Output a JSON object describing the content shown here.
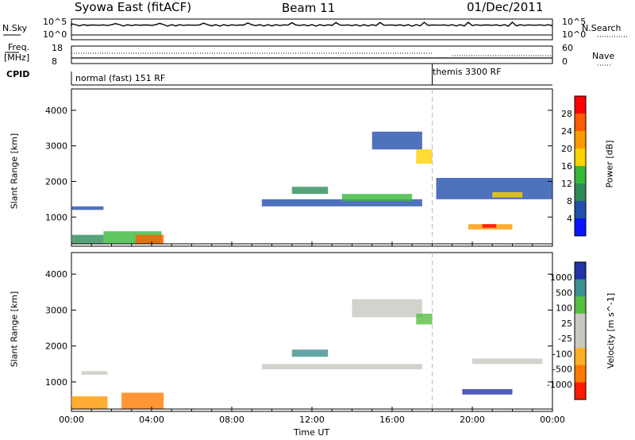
{
  "header": {
    "left": "Syowa East (fitACF)",
    "center": "Beam 11",
    "right": "01/Dec/2011"
  },
  "nsky_panel": {
    "left_label": "N.Sky",
    "right_label": "N.Search",
    "left_ticks": [
      "10^5",
      "10^0"
    ],
    "right_ticks": [
      "10^5",
      "10^0"
    ]
  },
  "freq_panel": {
    "left_label_line1": "Freq.",
    "left_label_line2": "[MHz]",
    "right_label": "Nave",
    "left_ticks": [
      "18",
      "8"
    ],
    "right_ticks": [
      "60",
      "0"
    ]
  },
  "cpid_panel": {
    "label": "CPID",
    "segments": [
      {
        "text": "normal (fast) 151 RF",
        "start_hour": 0
      },
      {
        "text": "themis 3300 RF",
        "start_hour": 18
      }
    ]
  },
  "chart_data": [
    {
      "type": "heatmap",
      "ylabel": "Slant Range [km]",
      "xlabel": "Time UT",
      "x_ticks": [
        "00:00",
        "04:00",
        "08:00",
        "12:00",
        "16:00",
        "20:00",
        "00:00"
      ],
      "y_ticks": [
        "1000",
        "2000",
        "3000",
        "4000"
      ],
      "ylim": [
        180,
        4600
      ],
      "xlim_hours": [
        0,
        24
      ],
      "colorbar_label": "Power [dB]",
      "colorbar_ticks": [
        "28",
        "24",
        "20",
        "16",
        "12",
        "8",
        "4"
      ],
      "colorbar_colors": [
        "#ff0000",
        "#ff5a00",
        "#ff9a00",
        "#ffd200",
        "#38b838",
        "#2e8b57",
        "#224faa",
        "#0a14ff"
      ],
      "regions": [
        {
          "t0": 0.0,
          "t1": 1.6,
          "r0": 250,
          "r1": 500,
          "c": "#2e8b57"
        },
        {
          "t0": 0.0,
          "t1": 1.6,
          "r0": 1200,
          "r1": 1300,
          "c": "#224faa"
        },
        {
          "t0": 1.6,
          "t1": 4.5,
          "r0": 250,
          "r1": 600,
          "c": "#38b838"
        },
        {
          "t0": 3.2,
          "t1": 4.6,
          "r0": 250,
          "r1": 500,
          "c": "#ff5a00"
        },
        {
          "t0": 9.5,
          "t1": 17.5,
          "r0": 1300,
          "r1": 1500,
          "c": "#224faa"
        },
        {
          "t0": 11.0,
          "t1": 12.8,
          "r0": 1650,
          "r1": 1850,
          "c": "#2e8b57"
        },
        {
          "t0": 13.5,
          "t1": 17.0,
          "r0": 1450,
          "r1": 1650,
          "c": "#38b838"
        },
        {
          "t0": 15.0,
          "t1": 17.5,
          "r0": 2900,
          "r1": 3400,
          "c": "#224faa"
        },
        {
          "t0": 17.2,
          "t1": 18.0,
          "r0": 2500,
          "r1": 2900,
          "c": "#ffd200"
        },
        {
          "t0": 18.2,
          "t1": 24.0,
          "r0": 1500,
          "r1": 2100,
          "c": "#224faa"
        },
        {
          "t0": 19.8,
          "t1": 22.0,
          "r0": 650,
          "r1": 800,
          "c": "#ff9a00"
        },
        {
          "t0": 20.5,
          "t1": 21.2,
          "r0": 700,
          "r1": 800,
          "c": "#ff0000"
        },
        {
          "t0": 21.0,
          "t1": 22.5,
          "r0": 1550,
          "r1": 1700,
          "c": "#ffd200"
        }
      ]
    },
    {
      "type": "heatmap",
      "ylabel": "Slant Range [km]",
      "xlabel": "Time UT",
      "x_ticks": [
        "00:00",
        "04:00",
        "08:00",
        "12:00",
        "16:00",
        "20:00",
        "00:00"
      ],
      "y_ticks": [
        "1000",
        "2000",
        "3000",
        "4000"
      ],
      "ylim": [
        180,
        4600
      ],
      "xlim_hours": [
        0,
        24
      ],
      "colorbar_label": "Velocity [m s^-1]",
      "colorbar_ticks": [
        "1000",
        "500",
        "100",
        "25",
        "-25",
        "-100",
        "-500",
        "-1000"
      ],
      "colorbar_colors": [
        "#2233aa",
        "#3e8f8f",
        "#55c040",
        "#c8c8c0",
        "#c8c8c0",
        "#ffb020",
        "#ff7a00",
        "#ff1a00"
      ],
      "regions": [
        {
          "t0": 0.0,
          "t1": 1.8,
          "r0": 250,
          "r1": 600,
          "c": "#ff9a00"
        },
        {
          "t0": 0.5,
          "t1": 1.8,
          "r0": 1200,
          "r1": 1300,
          "c": "#c8c8c0"
        },
        {
          "t0": 2.5,
          "t1": 4.6,
          "r0": 250,
          "r1": 700,
          "c": "#ff7a00"
        },
        {
          "t0": 9.5,
          "t1": 17.5,
          "r0": 1350,
          "r1": 1500,
          "c": "#c8c8c0"
        },
        {
          "t0": 11.0,
          "t1": 12.8,
          "r0": 1700,
          "r1": 1900,
          "c": "#3e8f8f"
        },
        {
          "t0": 14.0,
          "t1": 17.5,
          "r0": 2800,
          "r1": 3300,
          "c": "#c8c8c0"
        },
        {
          "t0": 17.2,
          "t1": 18.0,
          "r0": 2600,
          "r1": 2900,
          "c": "#55c040"
        },
        {
          "t0": 19.5,
          "t1": 22.0,
          "r0": 650,
          "r1": 800,
          "c": "#2233aa"
        },
        {
          "t0": 20.0,
          "t1": 23.5,
          "r0": 1500,
          "r1": 1650,
          "c": "#c8c8c0"
        }
      ]
    }
  ]
}
